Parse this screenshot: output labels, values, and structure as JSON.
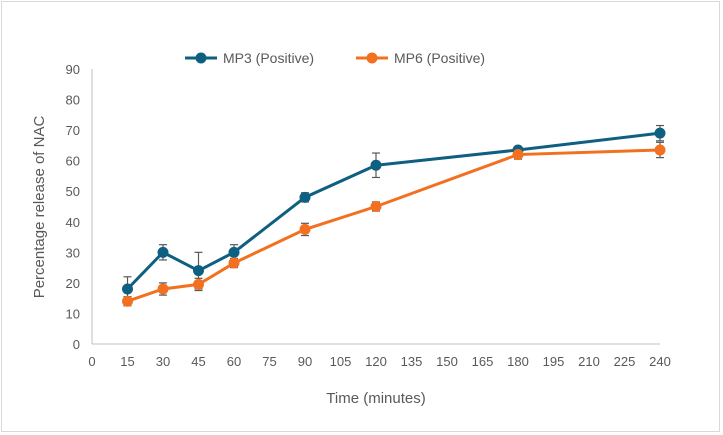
{
  "chart_data": {
    "type": "line",
    "title": "",
    "xlabel": "Time (minutes)",
    "ylabel": "Percentage release of NAC",
    "xlim": [
      0,
      240
    ],
    "ylim": [
      0,
      90
    ],
    "xticks": [
      0,
      15,
      30,
      45,
      60,
      75,
      90,
      105,
      120,
      135,
      150,
      165,
      180,
      195,
      210,
      225,
      240
    ],
    "yticks": [
      0,
      10,
      20,
      30,
      40,
      50,
      60,
      70,
      80,
      90
    ],
    "grid": false,
    "legend": "top",
    "x": [
      15,
      30,
      45,
      60,
      90,
      120,
      180,
      240
    ],
    "series": [
      {
        "name": "MP3 (Positive)",
        "color": "#0e5f80",
        "values": [
          18,
          30,
          24,
          30,
          48,
          58.5,
          63.5,
          69
        ],
        "errors": [
          4,
          2.5,
          6,
          2.5,
          1.5,
          4,
          1,
          2.5
        ]
      },
      {
        "name": "MP6 (Positive)",
        "color": "#f37021",
        "values": [
          14,
          18,
          19.5,
          26.5,
          37.5,
          45,
          62,
          63.5
        ],
        "errors": [
          1.5,
          2,
          2,
          1.5,
          2,
          1.5,
          1.5,
          2.5
        ]
      }
    ]
  }
}
